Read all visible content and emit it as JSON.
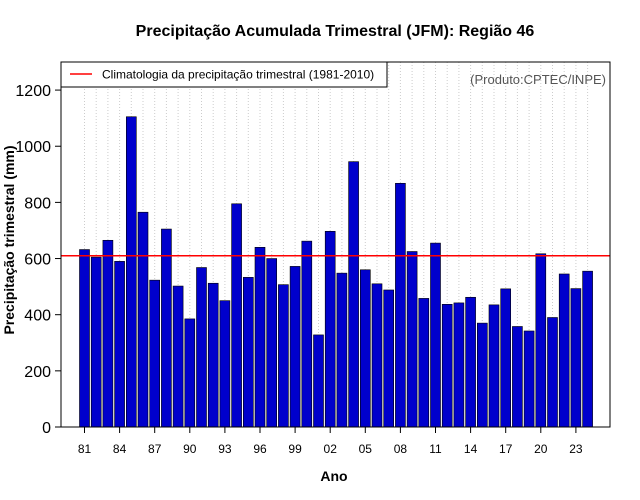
{
  "chart_data": {
    "type": "bar",
    "title": "Precipitação Acumulada Trimestral (JFM): Região 46",
    "xlabel": "Ano",
    "ylabel": "Precipitação trimestral (mm)",
    "credit": "(Produto:CPTEC/INPE)",
    "ylim": [
      0,
      1300
    ],
    "yticks": [
      0,
      200,
      400,
      600,
      800,
      1000,
      1200
    ],
    "ytick_labels": [
      "0",
      "200",
      "400",
      "600",
      "800",
      "1000",
      "1200"
    ],
    "x_first_year": 1981,
    "years": [
      1981,
      1982,
      1983,
      1984,
      1985,
      1986,
      1987,
      1988,
      1989,
      1990,
      1991,
      1992,
      1993,
      1994,
      1995,
      1996,
      1997,
      1998,
      1999,
      2000,
      2001,
      2002,
      2003,
      2004,
      2005,
      2006,
      2007,
      2008,
      2009,
      2010,
      2011,
      2012,
      2013,
      2014,
      2015,
      2016,
      2017,
      2018,
      2019,
      2020,
      2021,
      2022,
      2023,
      2024
    ],
    "values": [
      632,
      605,
      665,
      590,
      1105,
      765,
      523,
      705,
      502,
      385,
      568,
      512,
      450,
      795,
      533,
      640,
      600,
      507,
      572,
      662,
      328,
      697,
      548,
      945,
      560,
      510,
      488,
      868,
      625,
      458,
      655,
      437,
      442,
      462,
      370,
      435,
      492,
      358,
      342,
      617,
      390,
      545,
      493,
      555
    ],
    "xtick_labels": [
      "81",
      "84",
      "87",
      "90",
      "93",
      "96",
      "99",
      "02",
      "05",
      "08",
      "11",
      "14",
      "17",
      "20",
      "23"
    ],
    "xtick_years": [
      1981,
      1984,
      1987,
      1990,
      1993,
      1996,
      1999,
      2002,
      2005,
      2008,
      2011,
      2014,
      2017,
      2020,
      2023
    ],
    "reference_line": {
      "value": 610,
      "label": "Climatologia da precipitação trimestral (1981-2010)",
      "color": "#ff0000"
    },
    "bar_color": "#0000cc",
    "grid": "vertical dotted",
    "legend_position": "top-left"
  }
}
